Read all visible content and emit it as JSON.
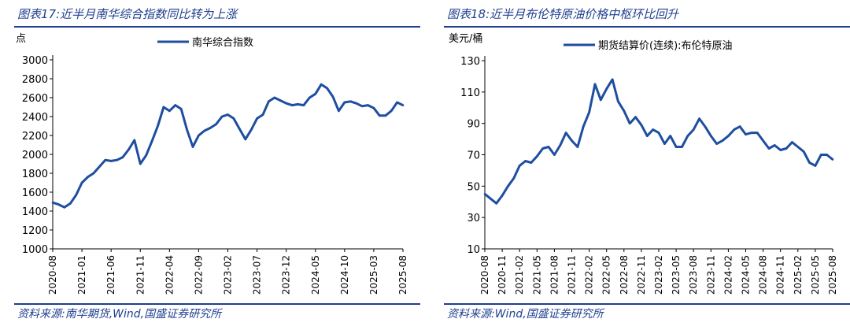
{
  "charts": [
    {
      "title": "图表17:近半月南华综合指数同比转为上涨",
      "source": "资料来源:南华期货,Wind,国盛证券研究所",
      "chart_data": {
        "type": "line",
        "ylabel": "点",
        "ylim": [
          1000,
          3000
        ],
        "yticks": [
          1000,
          1200,
          1400,
          1600,
          1800,
          2000,
          2200,
          2400,
          2600,
          2800,
          3000
        ],
        "xticks": [
          "2020-08",
          "2021-01",
          "2021-06",
          "2021-11",
          "2022-04",
          "2022-09",
          "2023-02",
          "2023-07",
          "2023-12",
          "2024-05",
          "2024-10",
          "2025-03",
          "2025-08"
        ],
        "xrange": [
          "2020-08",
          "2025-08"
        ],
        "legend_position": "top-center",
        "series": [
          {
            "name": "南华综合指数",
            "color": "#1f4ea0",
            "x": [
              "2020-08",
              "2020-09",
              "2020-10",
              "2020-11",
              "2020-12",
              "2021-01",
              "2021-02",
              "2021-03",
              "2021-04",
              "2021-05",
              "2021-06",
              "2021-07",
              "2021-08",
              "2021-09",
              "2021-10",
              "2021-11",
              "2021-12",
              "2022-01",
              "2022-02",
              "2022-03",
              "2022-04",
              "2022-05",
              "2022-06",
              "2022-07",
              "2022-08",
              "2022-09",
              "2022-10",
              "2022-11",
              "2022-12",
              "2023-01",
              "2023-02",
              "2023-03",
              "2023-04",
              "2023-05",
              "2023-06",
              "2023-07",
              "2023-08",
              "2023-09",
              "2023-10",
              "2023-11",
              "2023-12",
              "2024-01",
              "2024-02",
              "2024-03",
              "2024-04",
              "2024-05",
              "2024-06",
              "2024-07",
              "2024-08",
              "2024-09",
              "2024-10",
              "2024-11",
              "2024-12",
              "2025-01",
              "2025-02",
              "2025-03",
              "2025-04",
              "2025-05",
              "2025-06",
              "2025-07",
              "2025-08"
            ],
            "values": [
              1490,
              1470,
              1440,
              1480,
              1570,
              1700,
              1760,
              1800,
              1870,
              1940,
              1930,
              1940,
              1970,
              2050,
              2150,
              1900,
              1990,
              2140,
              2300,
              2500,
              2460,
              2520,
              2480,
              2260,
              2080,
              2200,
              2250,
              2280,
              2320,
              2400,
              2420,
              2380,
              2270,
              2160,
              2260,
              2380,
              2420,
              2560,
              2600,
              2570,
              2540,
              2520,
              2530,
              2520,
              2600,
              2640,
              2740,
              2700,
              2610,
              2460,
              2550,
              2560,
              2540,
              2510,
              2520,
              2490,
              2410,
              2410,
              2460,
              2550,
              2520
            ]
          }
        ]
      }
    },
    {
      "title": "图表18:近半月布伦特原油价格中枢环比回升",
      "source": "资料来源:Wind,国盛证券研究所",
      "chart_data": {
        "type": "line",
        "ylabel": "美元/桶",
        "ylim": [
          10,
          130
        ],
        "yticks": [
          10,
          30,
          50,
          70,
          90,
          110,
          130
        ],
        "xticks": [
          "2020-08",
          "2020-11",
          "2021-02",
          "2021-05",
          "2021-08",
          "2021-11",
          "2022-02",
          "2022-05",
          "2022-08",
          "2022-11",
          "2023-02",
          "2023-05",
          "2023-08",
          "2023-11",
          "2024-02",
          "2024-05",
          "2024-08",
          "2024-11",
          "2025-02",
          "2025-05",
          "2025-08"
        ],
        "xrange": [
          "2020-08",
          "2025-08"
        ],
        "legend_position": "top-center",
        "series": [
          {
            "name": "期货结算价(连续):布伦特原油",
            "color": "#1f4ea0",
            "x": [
              "2020-08",
              "2020-09",
              "2020-10",
              "2020-11",
              "2020-12",
              "2021-01",
              "2021-02",
              "2021-03",
              "2021-04",
              "2021-05",
              "2021-06",
              "2021-07",
              "2021-08",
              "2021-09",
              "2021-10",
              "2021-11",
              "2021-12",
              "2022-01",
              "2022-02",
              "2022-03",
              "2022-04",
              "2022-05",
              "2022-06",
              "2022-07",
              "2022-08",
              "2022-09",
              "2022-10",
              "2022-11",
              "2022-12",
              "2023-01",
              "2023-02",
              "2023-03",
              "2023-04",
              "2023-05",
              "2023-06",
              "2023-07",
              "2023-08",
              "2023-09",
              "2023-10",
              "2023-11",
              "2023-12",
              "2024-01",
              "2024-02",
              "2024-03",
              "2024-04",
              "2024-05",
              "2024-06",
              "2024-07",
              "2024-08",
              "2024-09",
              "2024-10",
              "2024-11",
              "2024-12",
              "2025-01",
              "2025-02",
              "2025-03",
              "2025-04",
              "2025-05",
              "2025-06",
              "2025-07",
              "2025-08"
            ],
            "values": [
              45,
              42,
              39,
              44,
              50,
              55,
              63,
              66,
              65,
              69,
              74,
              75,
              70,
              76,
              84,
              79,
              75,
              88,
              97,
              115,
              105,
              112,
              118,
              104,
              98,
              90,
              94,
              89,
              82,
              86,
              84,
              77,
              82,
              75,
              75,
              82,
              86,
              93,
              88,
              82,
              77,
              79,
              82,
              86,
              88,
              83,
              84,
              84,
              79,
              74,
              76,
              73,
              74,
              78,
              75,
              72,
              65,
              63,
              70,
              70,
              67
            ]
          }
        ]
      }
    }
  ]
}
